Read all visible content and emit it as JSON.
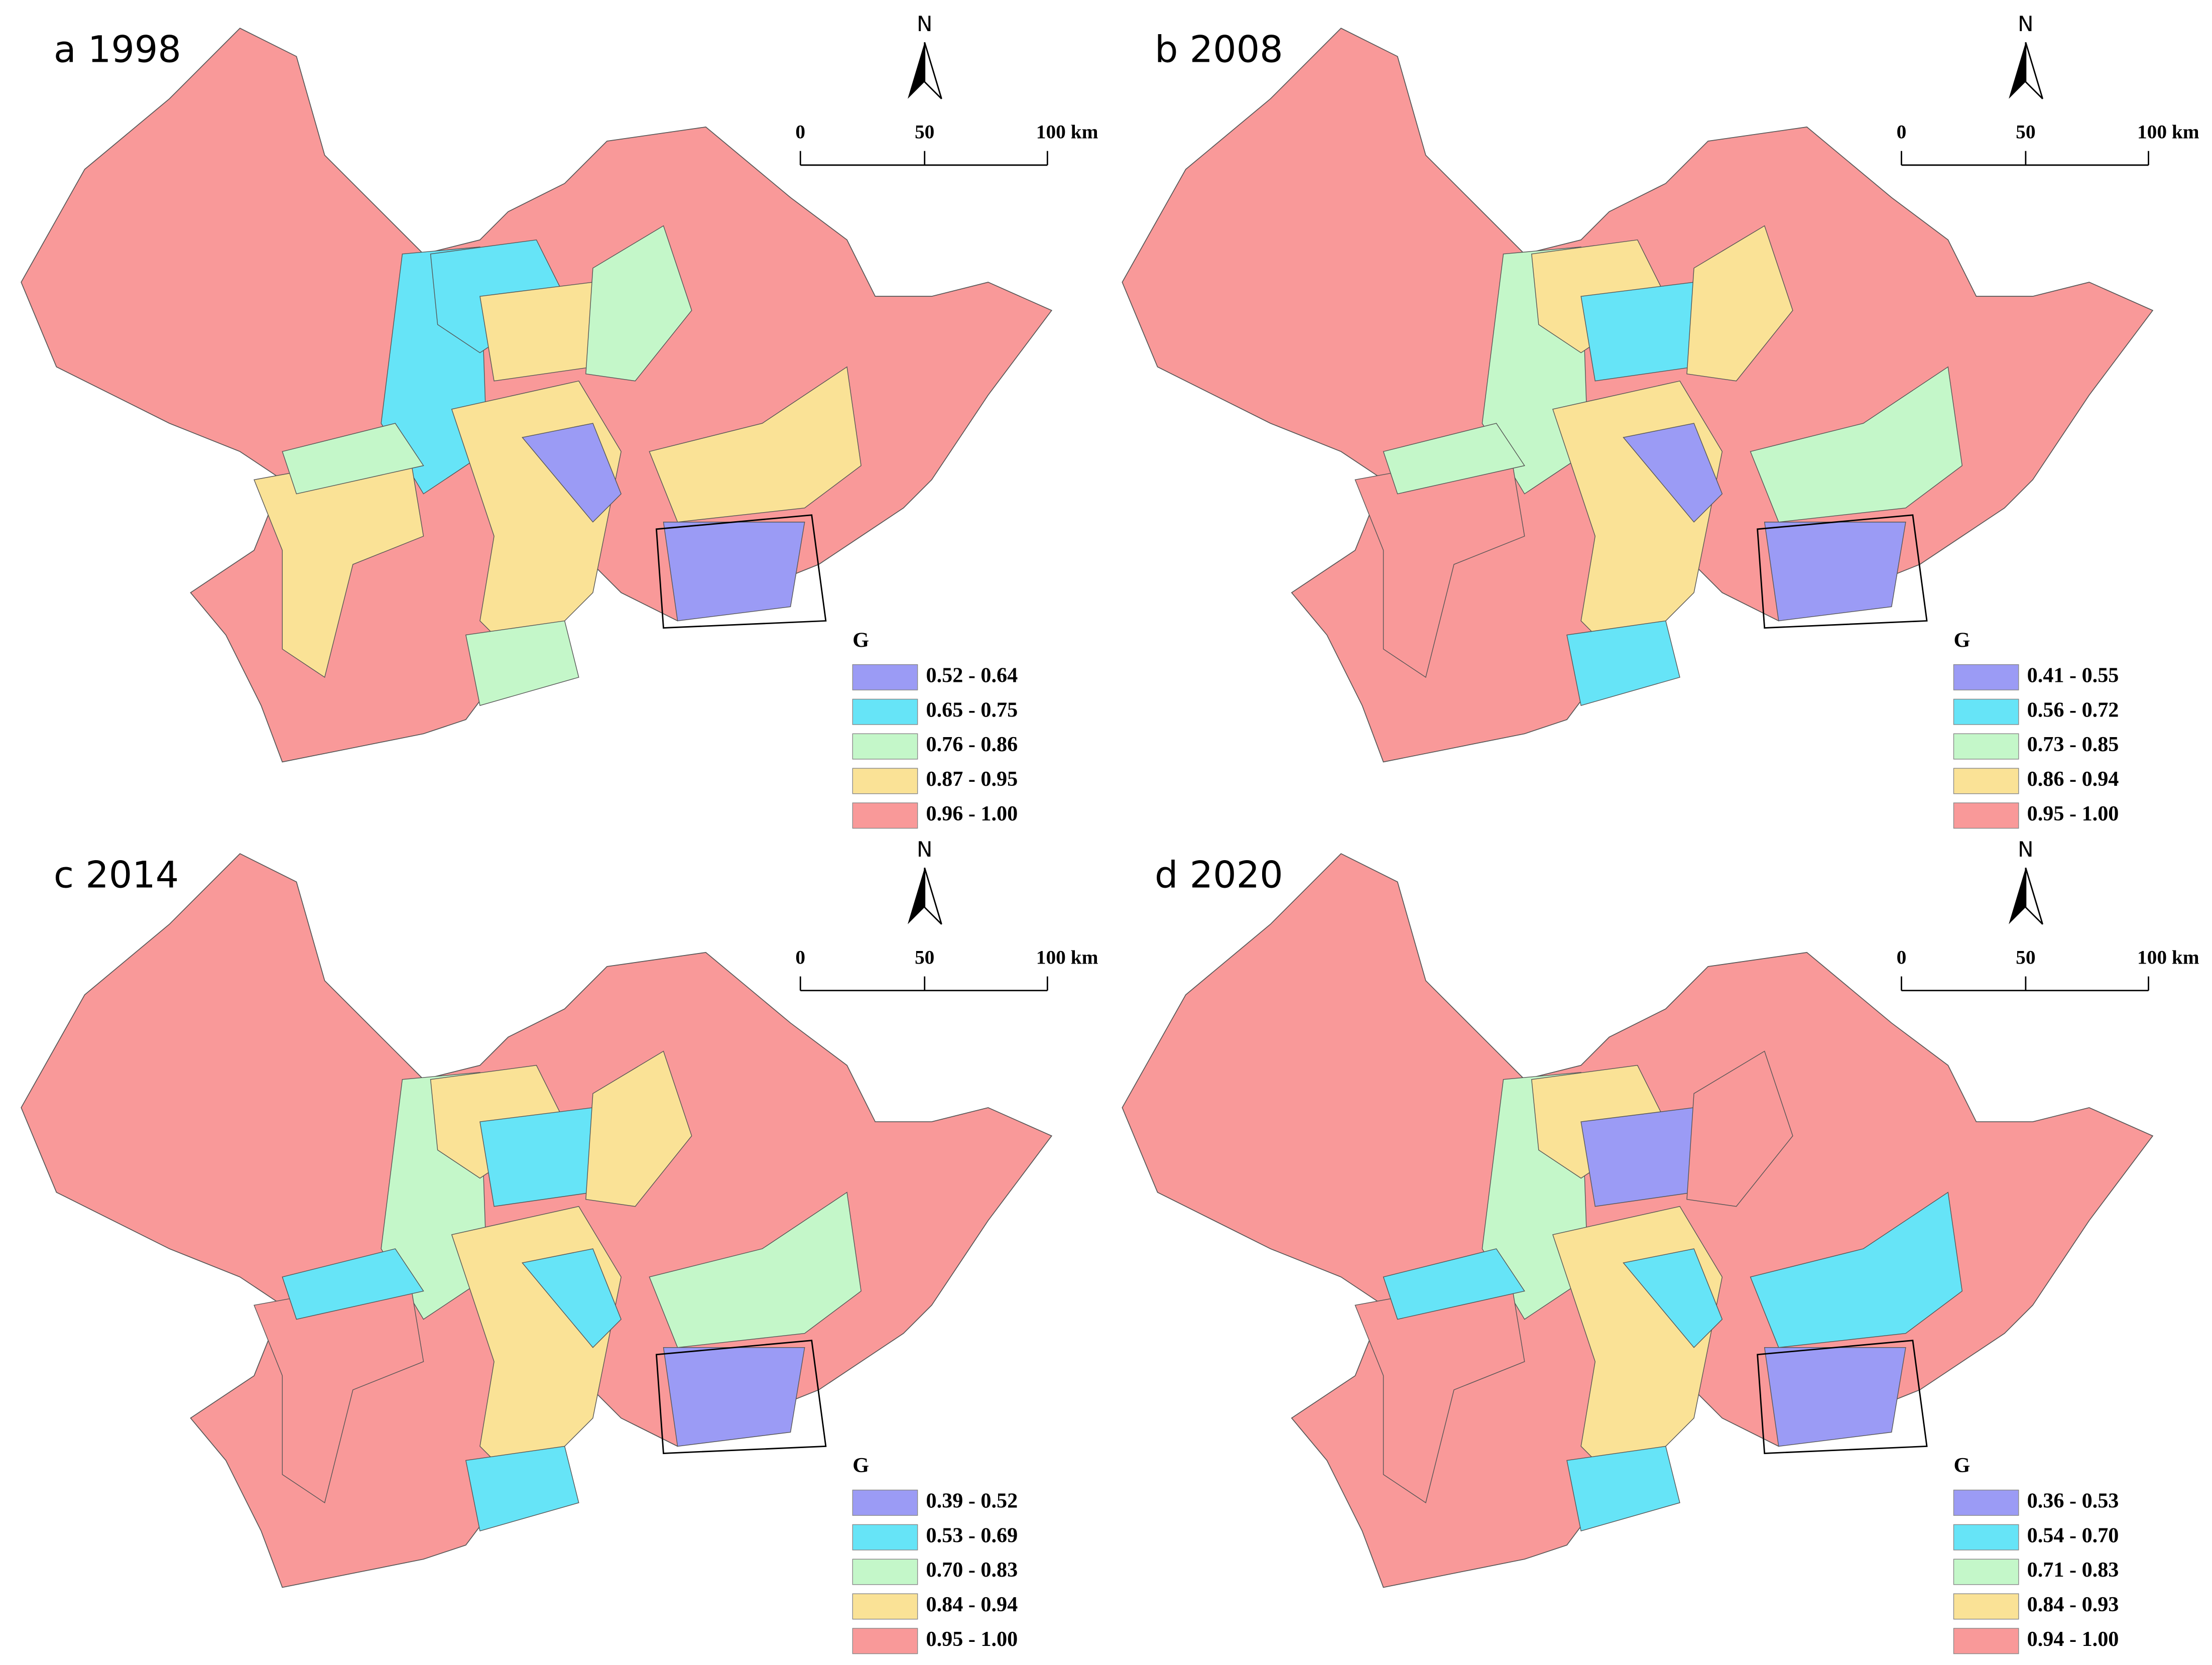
{
  "panels": [
    {
      "title": "a 1998",
      "north": "N",
      "scale_labels": [
        "0",
        "50",
        "100 km"
      ],
      "legend": {
        "title": "G",
        "items": [
          {
            "label": "0.52 - 0.64",
            "color": "#9b9bf5"
          },
          {
            "label": "0.65 - 0.75",
            "color": "#66e4f7"
          },
          {
            "label": "0.76 - 0.86",
            "color": "#c4f7c9"
          },
          {
            "label": "0.87 - 0.95",
            "color": "#fae296"
          },
          {
            "label": "0.96 - 1.00",
            "color": "#f99999"
          }
        ]
      }
    },
    {
      "title": "b 2008",
      "north": "N",
      "scale_labels": [
        "0",
        "50",
        "100 km"
      ],
      "legend": {
        "title": "G",
        "items": [
          {
            "label": "0.41 - 0.55",
            "color": "#9b9bf5"
          },
          {
            "label": "0.56 - 0.72",
            "color": "#66e4f7"
          },
          {
            "label": "0.73 - 0.85",
            "color": "#c4f7c9"
          },
          {
            "label": "0.86 - 0.94",
            "color": "#fae296"
          },
          {
            "label": "0.95 - 1.00",
            "color": "#f99999"
          }
        ]
      }
    },
    {
      "title": "c 2014",
      "north": "N",
      "scale_labels": [
        "0",
        "50",
        "100 km"
      ],
      "legend": {
        "title": "G",
        "items": [
          {
            "label": "0.39 - 0.52",
            "color": "#9b9bf5"
          },
          {
            "label": "0.53 - 0.69",
            "color": "#66e4f7"
          },
          {
            "label": "0.70 - 0.83",
            "color": "#c4f7c9"
          },
          {
            "label": "0.84 - 0.94",
            "color": "#fae296"
          },
          {
            "label": "0.95 - 1.00",
            "color": "#f99999"
          }
        ]
      }
    },
    {
      "title": "d 2020",
      "north": "N",
      "scale_labels": [
        "0",
        "50",
        "100 km"
      ],
      "legend": {
        "title": "G",
        "items": [
          {
            "label": "0.36 - 0.53",
            "color": "#9b9bf5"
          },
          {
            "label": "0.54 - 0.70",
            "color": "#66e4f7"
          },
          {
            "label": "0.71 - 0.83",
            "color": "#c4f7c9"
          },
          {
            "label": "0.84 - 0.93",
            "color": "#fae296"
          },
          {
            "label": "0.94 - 1.00",
            "color": "#f99999"
          }
        ]
      }
    }
  ]
}
